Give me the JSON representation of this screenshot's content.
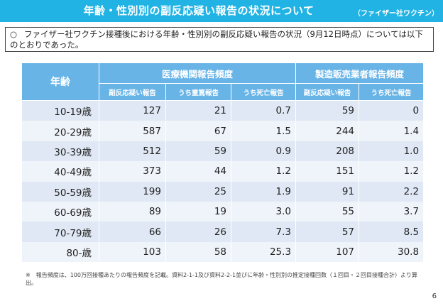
{
  "header": {
    "title": "年齢・性別別の副反応疑い報告の状況について",
    "subtitle": "（ファイザー社ワクチン）"
  },
  "note": {
    "mark": "○",
    "text": "ファイザー社ワクチン接種後における年齢・性別別の副反応疑い報告の状況（9月12日時点）については以下のとおりであった。"
  },
  "table": {
    "age_header": "年齢",
    "group_medical": "医療機関報告頻度",
    "group_manufacturer": "製造販売業者報告頻度",
    "sub_headers": [
      "副反応疑い報告",
      "うち重篤報告",
      "うち死亡報告",
      "副反応疑い報告",
      "うち死亡報告"
    ],
    "rows": [
      {
        "age": "10-19歳",
        "v1": "127",
        "v2": "21",
        "v3": "0.7",
        "v4": "59",
        "v5": "0"
      },
      {
        "age": "20-29歳",
        "v1": "587",
        "v2": "67",
        "v3": "1.5",
        "v4": "244",
        "v5": "1.4"
      },
      {
        "age": "30-39歳",
        "v1": "512",
        "v2": "59",
        "v3": "0.9",
        "v4": "208",
        "v5": "1.0"
      },
      {
        "age": "40-49歳",
        "v1": "373",
        "v2": "44",
        "v3": "1.2",
        "v4": "151",
        "v5": "1.2"
      },
      {
        "age": "50-59歳",
        "v1": "199",
        "v2": "25",
        "v3": "1.9",
        "v4": "91",
        "v5": "2.2"
      },
      {
        "age": "60-69歳",
        "v1": "89",
        "v2": "19",
        "v3": "3.0",
        "v4": "55",
        "v5": "3.7"
      },
      {
        "age": "70-79歳",
        "v1": "66",
        "v2": "26",
        "v3": "7.3",
        "v4": "57",
        "v5": "8.5"
      },
      {
        "age": "80-歳",
        "v1": "103",
        "v2": "58",
        "v3": "25.3",
        "v4": "107",
        "v5": "30.8"
      }
    ]
  },
  "footnote": {
    "mark": "※",
    "text": "報告頻度は、100万回接種あたりの報告頻度を記載。資料2-1-1及び資料2-2-1並びに年齢・性別別の推定接種回数（１回目・２回目接種合計）より算出。"
  },
  "page_number": "6"
}
